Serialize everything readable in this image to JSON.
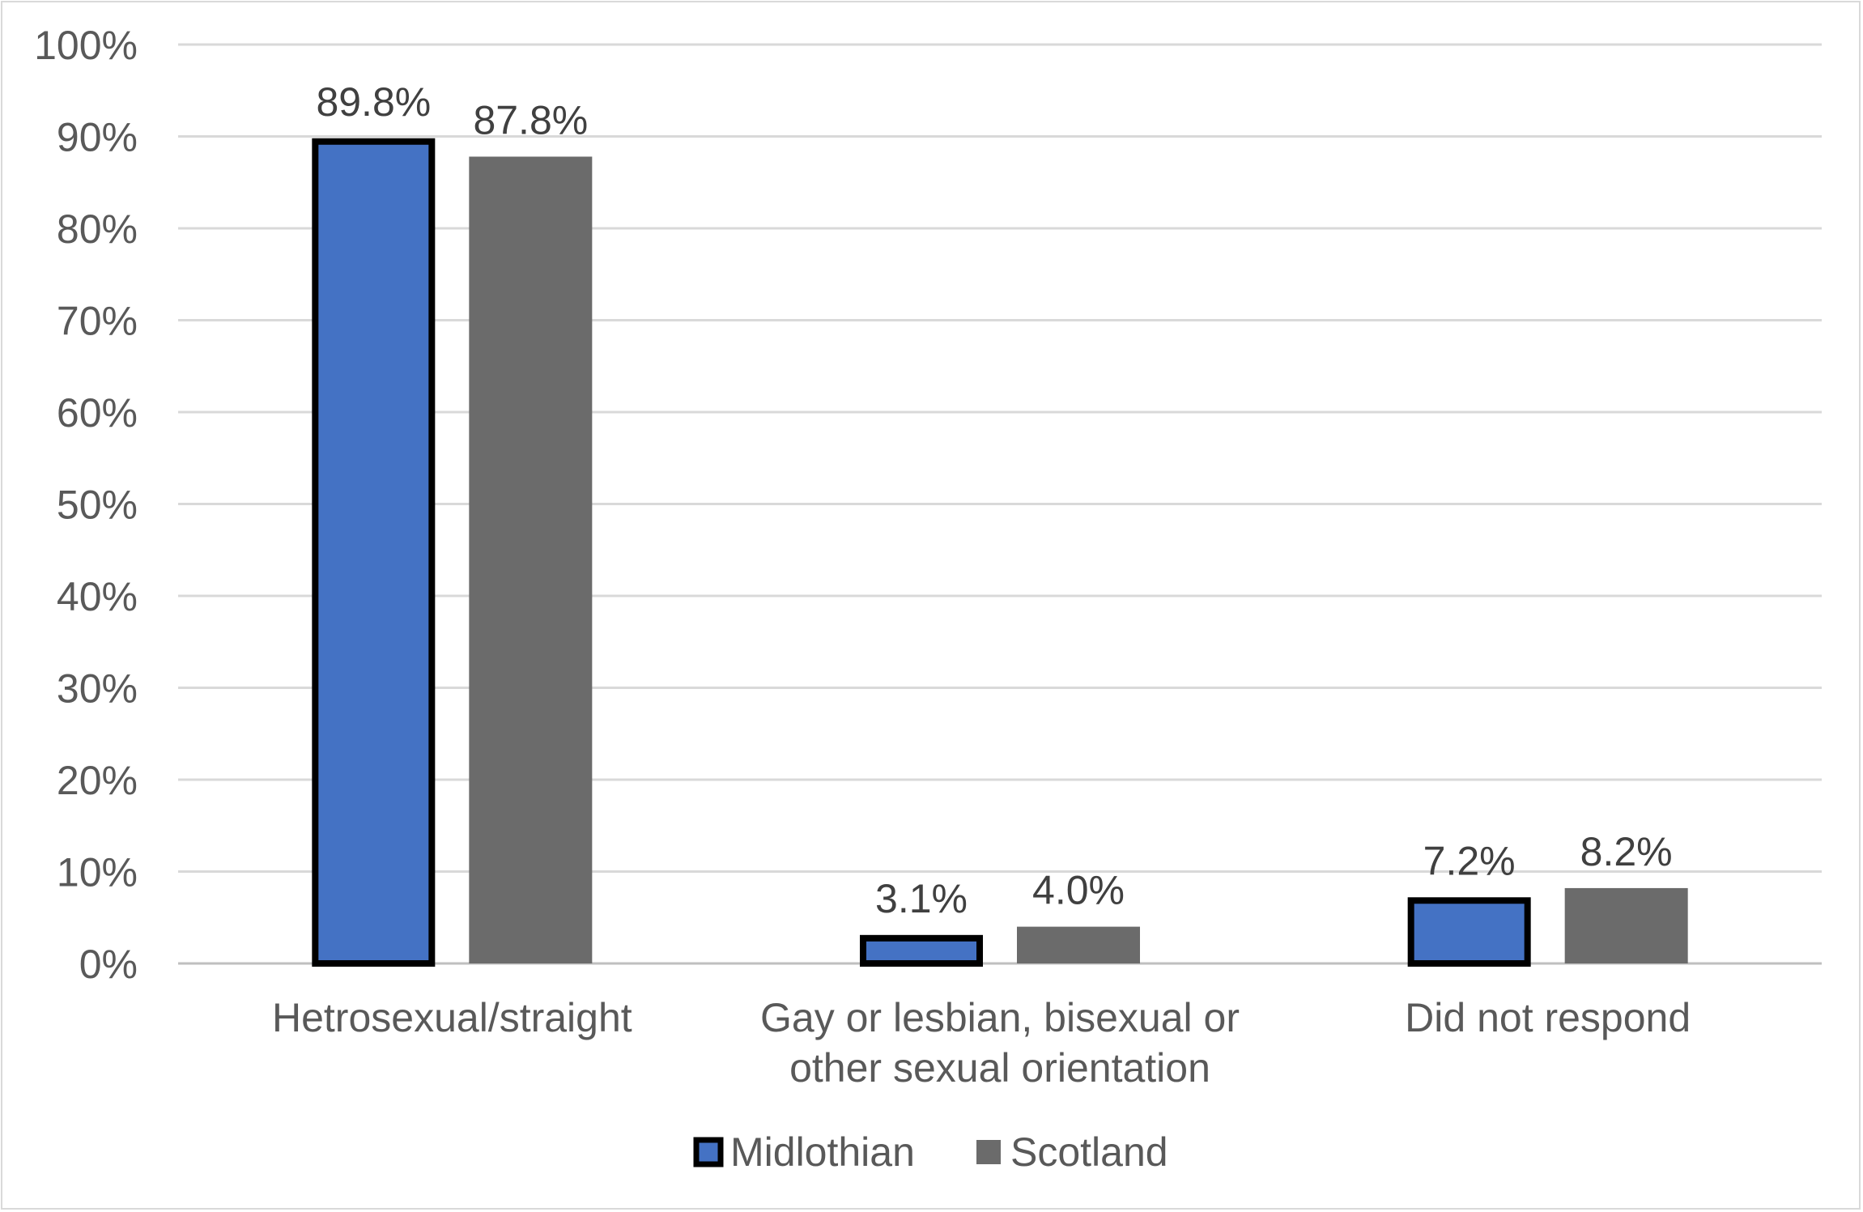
{
  "chart_data": {
    "type": "bar",
    "title": "",
    "xlabel": "",
    "ylabel": "",
    "categories": [
      [
        "Hetrosexual/straight"
      ],
      [
        "Gay or lesbian, bisexual or",
        "other sexual orientation"
      ],
      [
        "Did not respond"
      ]
    ],
    "series": [
      {
        "name": "Midlothian",
        "values": [
          89.8,
          3.1,
          7.2
        ],
        "labels": [
          "89.8%",
          "3.1%",
          "7.2%"
        ],
        "color": "#4472c4",
        "outline": "#000000"
      },
      {
        "name": "Scotland",
        "values": [
          87.8,
          4.0,
          8.2
        ],
        "labels": [
          "87.8%",
          "4.0%",
          "8.2%"
        ],
        "color": "#6b6b6b"
      }
    ],
    "ylim": [
      0,
      100
    ],
    "yticks": [
      "0%",
      "10%",
      "20%",
      "30%",
      "40%",
      "50%",
      "60%",
      "70%",
      "80%",
      "90%",
      "100%"
    ],
    "grid": true,
    "legend_position": "bottom"
  }
}
